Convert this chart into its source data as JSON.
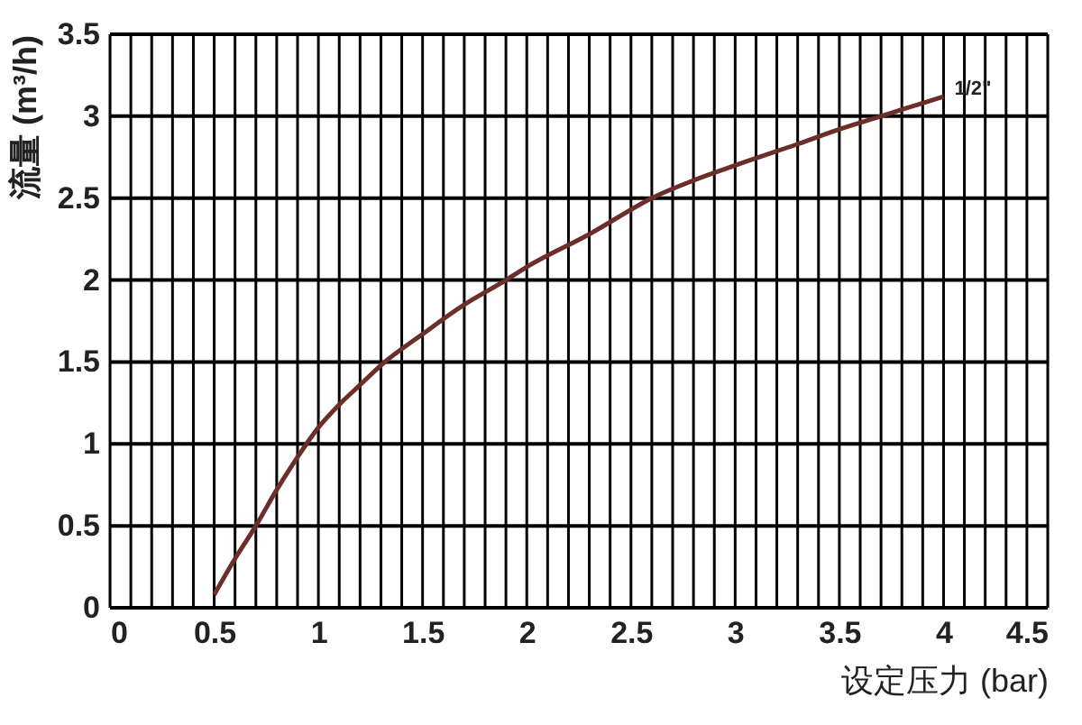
{
  "chart_data": {
    "type": "line",
    "xlabel": "设定压力 (bar)",
    "ylabel": "流量 (m³/h)",
    "x": [
      0.5,
      0.6,
      0.7,
      0.8,
      0.9,
      1.0,
      1.1,
      1.2,
      1.3,
      1.5,
      1.7,
      1.9,
      2.0,
      2.3,
      2.6,
      3.0,
      3.3,
      3.5,
      3.7,
      4.0
    ],
    "series": [
      {
        "color": "#6b2e2a",
        "values": [
          0.08,
          0.3,
          0.5,
          0.72,
          0.92,
          1.1,
          1.24,
          1.36,
          1.48,
          1.67,
          1.85,
          2.0,
          2.08,
          2.28,
          2.5,
          2.7,
          2.83,
          2.92,
          3.0,
          3.12
        ]
      }
    ],
    "annotations": [
      {
        "text": "1/2\"",
        "x": 4.0,
        "y": 3.12
      }
    ],
    "xlim": [
      0,
      4.5
    ],
    "ylim": [
      0,
      3.5
    ],
    "xticks": [
      0,
      {
        "value": 0.1,
        "label": null
      },
      {
        "value": 0.2,
        "label": null
      },
      {
        "value": 0.3,
        "label": null
      },
      {
        "value": 0.4,
        "label": null
      },
      0.5,
      {
        "value": 0.6,
        "label": null
      },
      {
        "value": 0.7,
        "label": null
      },
      {
        "value": 0.8,
        "label": null
      },
      {
        "value": 0.9,
        "label": null
      },
      1,
      {
        "value": 1.1,
        "label": null
      },
      {
        "value": 1.2,
        "label": null
      },
      {
        "value": 1.3,
        "label": null
      },
      {
        "value": 1.4,
        "label": null
      },
      1.5,
      {
        "value": 1.6,
        "label": null
      },
      {
        "value": 1.7,
        "label": null
      },
      {
        "value": 1.8,
        "label": null
      },
      {
        "value": 1.9,
        "label": null
      },
      2,
      {
        "value": 2.1,
        "label": null
      },
      {
        "value": 2.2,
        "label": null
      },
      {
        "value": 2.3,
        "label": null
      },
      {
        "value": 2.4,
        "label": null
      },
      2.5,
      {
        "value": 2.6,
        "label": null
      },
      {
        "value": 2.7,
        "label": null
      },
      {
        "value": 2.8,
        "label": null
      },
      {
        "value": 2.9,
        "label": null
      },
      3,
      {
        "value": 3.1,
        "label": null
      },
      {
        "value": 3.2,
        "label": null
      },
      {
        "value": 3.3,
        "label": null
      },
      {
        "value": 3.4,
        "label": null
      },
      3.5,
      {
        "value": 3.6,
        "label": null
      },
      {
        "value": 3.7,
        "label": null
      },
      {
        "value": 3.8,
        "label": null
      },
      {
        "value": 3.9,
        "label": null
      },
      4,
      {
        "value": 4.1,
        "label": null
      },
      {
        "value": 4.2,
        "label": null
      },
      {
        "value": 4.3,
        "label": null
      },
      {
        "value": 4.4,
        "label": null
      },
      4.5
    ],
    "yticks": [
      0,
      0.5,
      1,
      1.5,
      2,
      2.5,
      3,
      3.5
    ],
    "grid": true,
    "marker": "none",
    "line_style": "solid"
  }
}
